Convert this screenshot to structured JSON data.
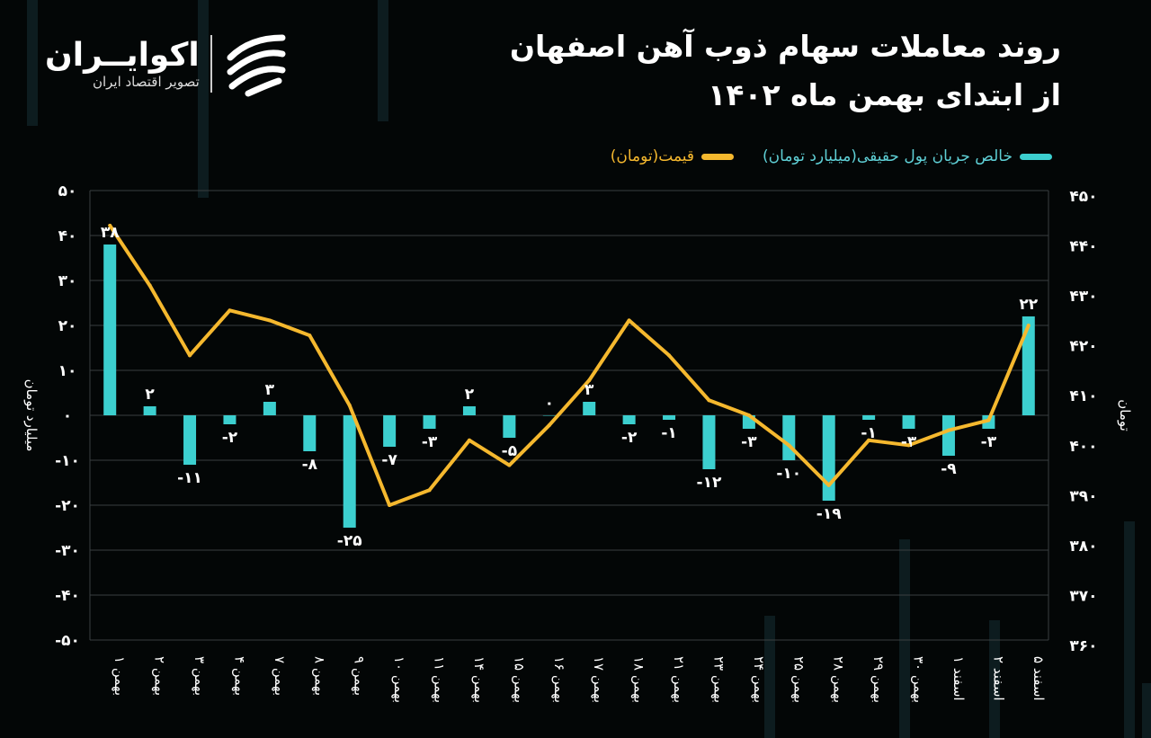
{
  "logo": {
    "name": "اکوایــران",
    "subtitle": "تصویر اقتصاد ایران"
  },
  "chart_data": {
    "type": "bar+line",
    "title": "روند معاملات سهام ذوب آهن اصفهان",
    "subtitle": "از ابتدای بهمن ماه ۱۴۰۲",
    "ylabel_left": "میلیارد تومان",
    "ylabel_right": "تومان",
    "ylim_left": [
      -50,
      50
    ],
    "ylim_right": [
      360,
      450
    ],
    "yticks_left": [
      "۵۰",
      "۴۰",
      "۳۰",
      "۲۰",
      "۱۰",
      "۰",
      "-۱۰",
      "-۲۰",
      "-۳۰",
      "-۴۰",
      "-۵۰"
    ],
    "yticks_left_values": [
      50,
      40,
      30,
      20,
      10,
      0,
      -10,
      -20,
      -30,
      -40,
      -50
    ],
    "yticks_right": [
      "۴۵۰",
      "۴۴۰",
      "۴۳۰",
      "۴۲۰",
      "۴۱۰",
      "۴۰۰",
      "۳۹۰",
      "۳۸۰",
      "۳۷۰",
      "۳۶۰"
    ],
    "yticks_right_values": [
      450,
      440,
      430,
      420,
      410,
      400,
      390,
      380,
      370,
      360
    ],
    "grid": true,
    "legend_placement": "top-right",
    "categories": [
      "۱ بهمن",
      "۲ بهمن",
      "۳ بهمن",
      "۴ بهمن",
      "۷ بهمن",
      "۸ بهمن",
      "۹ بهمن",
      "۱۰ بهمن",
      "۱۱ بهمن",
      "۱۴ بهمن",
      "۱۵ بهمن",
      "۱۶ بهمن",
      "۱۷ بهمن",
      "۱۸ بهمن",
      "۲۱ بهمن",
      "۲۳ بهمن",
      "۲۴ بهمن",
      "۲۵ بهمن",
      "۲۸ بهمن",
      "۲۹ بهمن",
      "۳۰ بهمن",
      "۱ اسفند",
      "۲ اسفند",
      "۵ اسفند"
    ],
    "series": [
      {
        "name": "خالص جریان پول حقیقی(میلیارد تومان)",
        "type": "bar",
        "axis": "left",
        "color": "#3ccfcf",
        "values": [
          38,
          2,
          -11,
          -2,
          3,
          -8,
          -25,
          -7,
          -3,
          2,
          -5,
          0,
          3,
          -2,
          -1,
          -12,
          -3,
          -10,
          -19,
          -1,
          -3,
          -9,
          -3,
          22
        ],
        "labels": [
          "۳۸",
          "۲",
          "-۱۱",
          "-۲",
          "۳",
          "-۸",
          "-۲۵",
          "-۷",
          "-۳",
          "۲",
          "-۵",
          "۰",
          "۳",
          "-۲",
          "-۱",
          "-۱۲",
          "-۳",
          "-۱۰",
          "-۱۹",
          "-۱",
          "-۳",
          "-۹",
          "-۳",
          "۲۲"
        ]
      },
      {
        "name": "قیمت(تومان)",
        "type": "line",
        "axis": "right",
        "color": "#f5b82e",
        "values": [
          443,
          431,
          417,
          426,
          424,
          421,
          407,
          387,
          390,
          400,
          395,
          403,
          412,
          424,
          417,
          408,
          405,
          399,
          391,
          400,
          399,
          402,
          404,
          423
        ]
      }
    ]
  }
}
